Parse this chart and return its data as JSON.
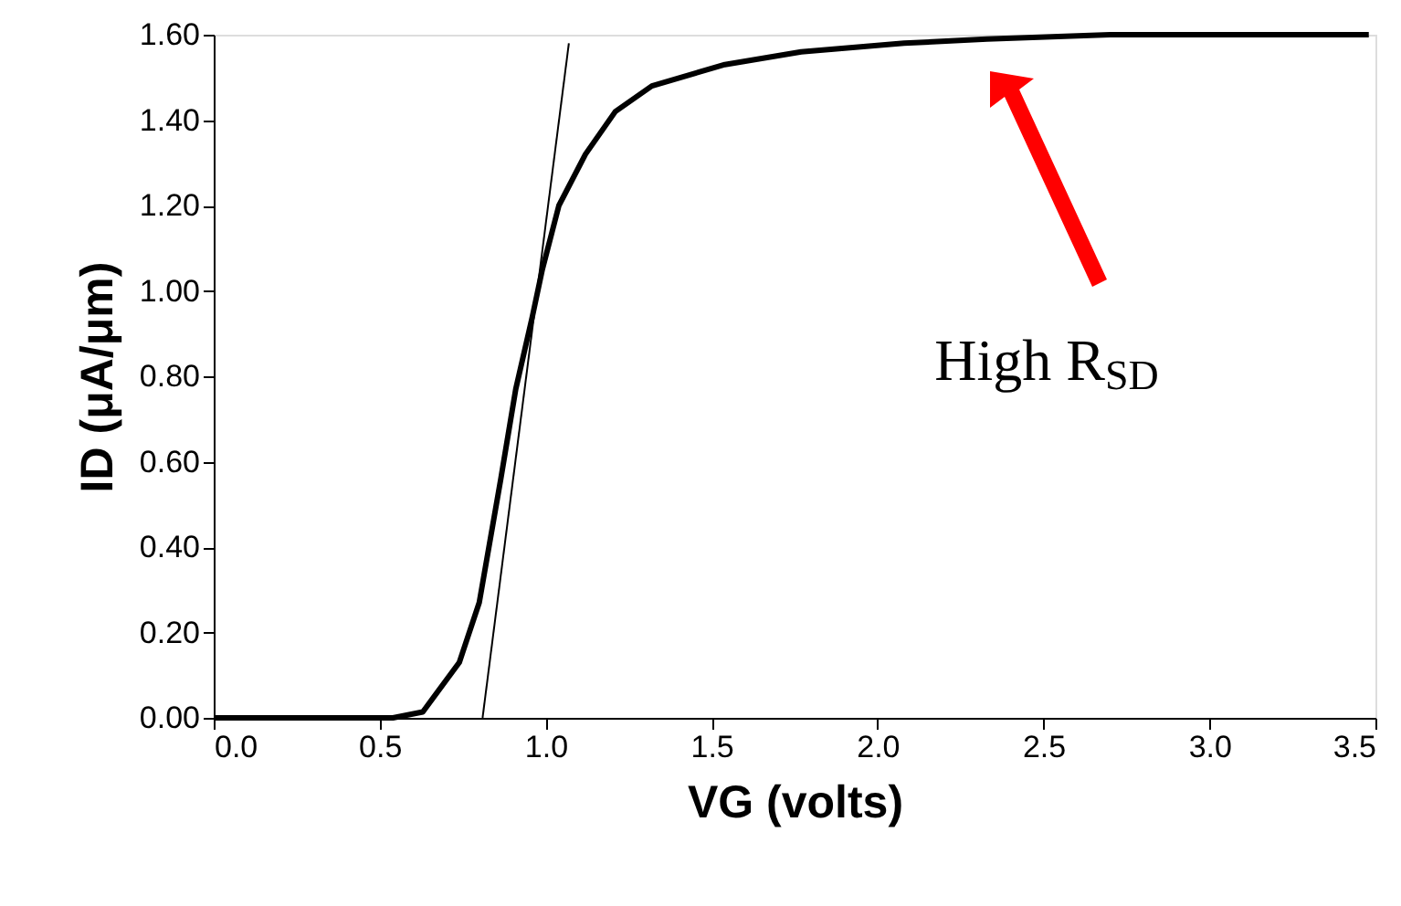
{
  "chart_data": {
    "type": "line",
    "xlabel": "VG (volts)",
    "ylabel": "ID (μA/μm)",
    "xlim": [
      0,
      3.5
    ],
    "ylim": [
      0,
      1.6
    ],
    "xticks": [
      {
        "value": 0,
        "label": "0.0"
      },
      {
        "value": 0.5,
        "label": "0.5"
      },
      {
        "value": 1,
        "label": "1.0"
      },
      {
        "value": 1.5,
        "label": "1.5"
      },
      {
        "value": 2,
        "label": "2.0"
      },
      {
        "value": 2.5,
        "label": "2.5"
      },
      {
        "value": 3,
        "label": "3.0"
      },
      {
        "value": 3.5,
        "label": "3.5"
      }
    ],
    "yticks": [
      {
        "value": 0,
        "label": "0.00"
      },
      {
        "value": 0.2,
        "label": "0.20"
      },
      {
        "value": 0.4,
        "label": "0.40"
      },
      {
        "value": 0.6,
        "label": "0.60"
      },
      {
        "value": 0.8,
        "label": "0.80"
      },
      {
        "value": 1,
        "label": "1.00"
      },
      {
        "value": 1.2,
        "label": "1.20"
      },
      {
        "value": 1.4,
        "label": "1.40"
      },
      {
        "value": 1.6,
        "label": "1.60"
      }
    ],
    "grid": false,
    "marker": "none",
    "series": [
      {
        "color": "#000000",
        "line_style": "solid",
        "x": [
          0,
          0.54,
          0.63,
          0.74,
          0.8,
          0.865,
          0.91,
          0.96,
          0.99,
          1.04,
          1.12,
          1.21,
          1.32,
          1.54,
          1.77,
          2.08,
          2.33,
          2.7,
          3.1,
          3.48
        ],
        "values": [
          0,
          0,
          0.014,
          0.13,
          0.27,
          0.56,
          0.77,
          0.94,
          1.05,
          1.2,
          1.32,
          1.42,
          1.48,
          1.53,
          1.56,
          1.58,
          1.59,
          1.6,
          1.6,
          1.6
        ]
      },
      {
        "type": "line",
        "color": "#000000",
        "line_style": "solid",
        "x": [
          0.81,
          1.07
        ],
        "values": [
          0,
          1.58
        ]
      }
    ],
    "annotations": [
      "High R$_{SD}$"
    ]
  }
}
